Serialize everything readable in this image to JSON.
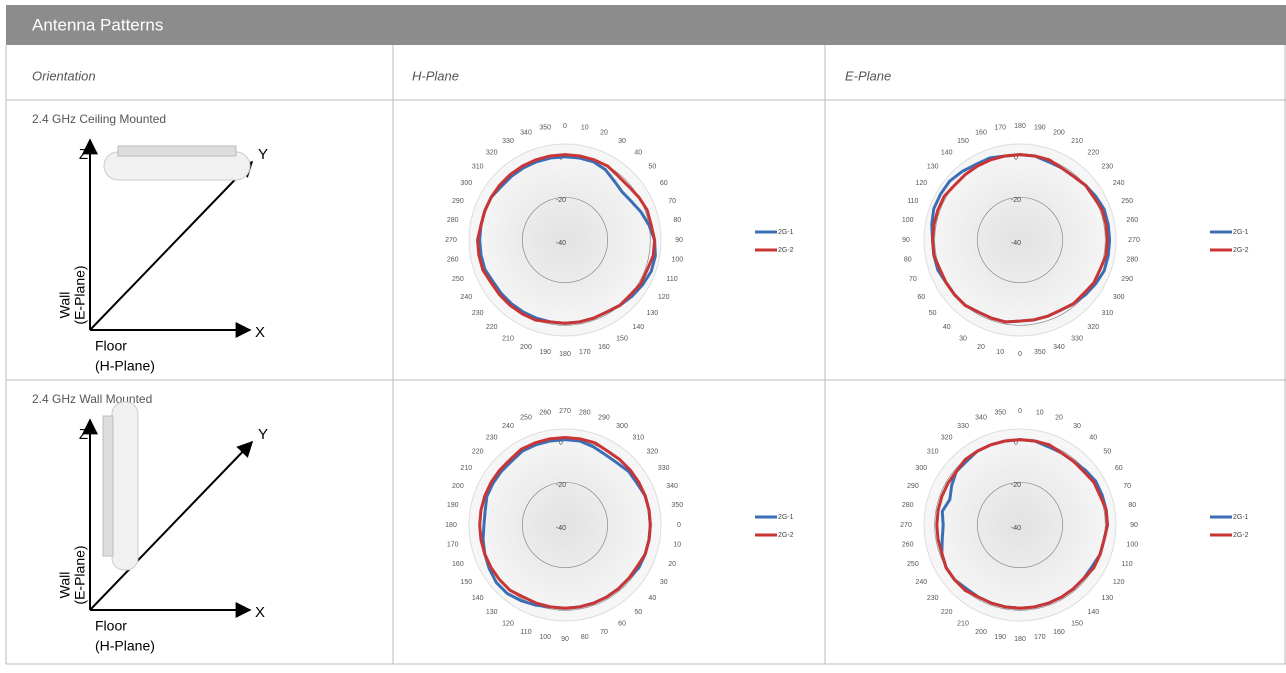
{
  "header": {
    "title": "Antenna Patterns"
  },
  "table": {
    "columns": [
      "Orientation",
      "H-Plane",
      "E-Plane"
    ],
    "rows": [
      {
        "label": "2.4 GHz Ceiling  Mounted",
        "diagram": {
          "z": "Z",
          "y": "Y",
          "x": "X",
          "wall": "Wall",
          "wall_plane": "(E-Plane)",
          "floor": "Floor",
          "floor_plane": "(H-Plane)"
        }
      },
      {
        "label": "2.4 GHz Wall Mounted",
        "diagram": {
          "z": "Z",
          "y": "Y",
          "x": "X",
          "wall": "Wall",
          "wall_plane": "(E-Plane)",
          "floor": "Floor",
          "floor_plane": "(H-Plane)"
        }
      }
    ]
  },
  "chart_data": [
    {
      "type": "polar",
      "rlim": [
        -40,
        5
      ],
      "rticks": [
        0,
        -20,
        -40
      ],
      "categories": [
        0,
        10,
        20,
        30,
        40,
        50,
        60,
        70,
        80,
        90,
        100,
        110,
        120,
        130,
        140,
        150,
        160,
        170,
        180,
        190,
        200,
        210,
        220,
        230,
        240,
        250,
        260,
        270,
        280,
        290,
        300,
        310,
        320,
        330,
        340,
        350
      ],
      "series": [
        {
          "name": "2G-1",
          "color": "#3a6fb5",
          "values": [
            -1,
            -1,
            -1,
            -2,
            -4,
            -5,
            -4,
            -2,
            0,
            2,
            3,
            3,
            2,
            1,
            0,
            -1,
            -1,
            -1,
            -1,
            -1,
            -1,
            -1,
            -1,
            -1,
            -1,
            0,
            0,
            0,
            0,
            0,
            0,
            -1,
            -1,
            -1,
            -1,
            -1
          ]
        },
        {
          "name": "2G-2",
          "color": "#c93535",
          "values": [
            0,
            0,
            0,
            0,
            -1,
            -1,
            0,
            1,
            1,
            2,
            2,
            1,
            1,
            0,
            0,
            -1,
            -1,
            -1,
            -1,
            -1,
            0,
            0,
            0,
            0,
            0,
            1,
            1,
            1,
            0,
            0,
            0,
            0,
            0,
            0,
            0,
            0
          ]
        }
      ]
    },
    {
      "type": "polar",
      "rlim": [
        -40,
        5
      ],
      "rticks": [
        0,
        -20,
        -40
      ],
      "categories": [
        180,
        190,
        200,
        210,
        220,
        230,
        240,
        250,
        260,
        270,
        280,
        290,
        300,
        310,
        320,
        330,
        340,
        350,
        0,
        10,
        20,
        30,
        40,
        50,
        60,
        70,
        80,
        90,
        100,
        110,
        120,
        130,
        140,
        150,
        160,
        170
      ],
      "series": [
        {
          "name": "2G-1",
          "color": "#3a6fb5",
          "values": [
            0,
            0,
            -1,
            -1,
            -1,
            0,
            1,
            2,
            2,
            2,
            2,
            2,
            1,
            0,
            -1,
            -2,
            -2,
            -2,
            -2,
            -1,
            -1,
            -1,
            0,
            0,
            0,
            1,
            1,
            1,
            2,
            3,
            3,
            3,
            2,
            1,
            1,
            0
          ]
        },
        {
          "name": "2G-2",
          "color": "#c93535",
          "values": [
            0,
            0,
            0,
            -1,
            -1,
            0,
            0,
            1,
            1,
            1,
            1,
            0,
            0,
            -1,
            -1,
            -2,
            -2,
            -2,
            -2,
            -1,
            -1,
            -1,
            0,
            0,
            0,
            0,
            1,
            1,
            1,
            1,
            1,
            0,
            0,
            0,
            0,
            0
          ]
        }
      ]
    },
    {
      "type": "polar",
      "rlim": [
        -40,
        5
      ],
      "rticks": [
        0,
        -20,
        -40
      ],
      "categories": [
        270,
        280,
        290,
        300,
        310,
        320,
        330,
        340,
        350,
        0,
        10,
        20,
        30,
        40,
        50,
        60,
        70,
        80,
        90,
        100,
        110,
        120,
        130,
        140,
        150,
        160,
        170,
        180,
        190,
        200,
        210,
        220,
        230,
        240,
        250,
        260
      ],
      "series": [
        {
          "name": "2G-1",
          "color": "#3a6fb5",
          "values": [
            0,
            0,
            -1,
            -2,
            -2,
            -1,
            -1,
            0,
            0,
            0,
            0,
            0,
            0,
            -1,
            -1,
            -1,
            -1,
            -1,
            -1,
            -1,
            0,
            1,
            2,
            2,
            1,
            0,
            -1,
            -2,
            -2,
            -1,
            -1,
            -1,
            -1,
            0,
            0,
            0
          ]
        },
        {
          "name": "2G-2",
          "color": "#c93535",
          "values": [
            1,
            1,
            1,
            0,
            0,
            0,
            0,
            0,
            0,
            0,
            0,
            0,
            -1,
            -1,
            -1,
            -1,
            -1,
            -1,
            -1,
            -1,
            -1,
            -1,
            0,
            0,
            0,
            0,
            0,
            0,
            0,
            0,
            0,
            0,
            0,
            1,
            1,
            1
          ]
        }
      ]
    },
    {
      "type": "polar",
      "rlim": [
        -40,
        5
      ],
      "rticks": [
        0,
        -20,
        -40
      ],
      "categories": [
        0,
        10,
        20,
        30,
        40,
        50,
        60,
        70,
        80,
        90,
        100,
        110,
        120,
        130,
        140,
        150,
        160,
        170,
        180,
        190,
        200,
        210,
        220,
        230,
        240,
        250,
        260,
        270,
        280,
        290,
        300,
        310,
        320,
        330,
        340,
        350
      ],
      "series": [
        {
          "name": "2G-1",
          "color": "#3a6fb5",
          "values": [
            0,
            0,
            -1,
            -1,
            -1,
            0,
            1,
            1,
            1,
            1,
            0,
            0,
            -1,
            -1,
            -1,
            -1,
            -1,
            -1,
            -1,
            -1,
            -1,
            -1,
            -1,
            0,
            0,
            -1,
            -3,
            -4,
            -3,
            -5,
            -3,
            -1,
            -1,
            0,
            0,
            0
          ]
        },
        {
          "name": "2G-2",
          "color": "#c93535",
          "values": [
            0,
            0,
            0,
            -1,
            -1,
            -1,
            0,
            0,
            1,
            1,
            0,
            0,
            0,
            -1,
            -1,
            -1,
            -1,
            -1,
            -1,
            -1,
            -1,
            -1,
            0,
            0,
            0,
            -1,
            -1,
            -1,
            -1,
            -1,
            -1,
            -1,
            0,
            0,
            0,
            0
          ]
        }
      ]
    }
  ]
}
